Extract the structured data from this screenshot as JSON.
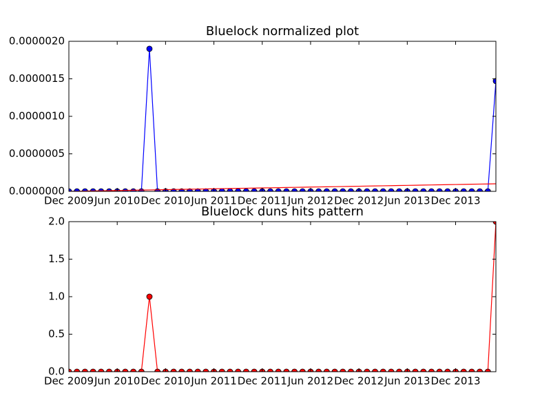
{
  "chart_data": [
    {
      "type": "line",
      "title": "Bluelock normalized plot",
      "x": [
        "2009-12",
        "2010-01",
        "2010-02",
        "2010-03",
        "2010-04",
        "2010-05",
        "2010-06",
        "2010-07",
        "2010-08",
        "2010-09",
        "2010-10",
        "2010-11",
        "2010-12",
        "2011-01",
        "2011-02",
        "2011-03",
        "2011-04",
        "2011-05",
        "2011-06",
        "2011-07",
        "2011-08",
        "2011-09",
        "2011-10",
        "2011-11",
        "2011-12",
        "2012-01",
        "2012-02",
        "2012-03",
        "2012-04",
        "2012-05",
        "2012-06",
        "2012-07",
        "2012-08",
        "2012-09",
        "2012-10",
        "2012-11",
        "2012-12",
        "2013-01",
        "2013-02",
        "2013-03",
        "2013-04",
        "2013-05",
        "2013-06",
        "2013-07",
        "2013-08",
        "2013-09",
        "2013-10",
        "2013-11",
        "2013-12",
        "2014-01",
        "2014-02",
        "2014-03",
        "2014-04",
        "2014-05"
      ],
      "series": [
        {
          "color": "#0000ff",
          "markers": true,
          "values": [
            0,
            0,
            0,
            0,
            0,
            0,
            0,
            0,
            0,
            0,
            1.9e-06,
            0,
            0,
            0,
            0,
            0,
            0,
            0,
            0,
            0,
            0,
            0,
            0,
            0,
            0,
            0,
            0,
            0,
            0,
            0,
            0,
            0,
            0,
            0,
            0,
            0,
            0,
            0,
            0,
            0,
            0,
            0,
            0,
            0,
            0,
            0,
            0,
            0,
            0,
            0,
            0,
            0,
            0,
            1.47e-06
          ]
        },
        {
          "color": "#ff0000",
          "markers": false,
          "values": [
            0,
            1.9e-09,
            3.8e-09,
            5.7e-09,
            7.6e-09,
            9.5e-09,
            1.14e-08,
            1.33e-08,
            1.52e-08,
            1.71e-08,
            1.9e-08,
            2.09e-08,
            2.28e-08,
            2.47e-08,
            2.66e-08,
            2.85e-08,
            3.04e-08,
            3.23e-08,
            3.42e-08,
            3.61e-08,
            3.8e-08,
            3.99e-08,
            4.18e-08,
            4.37e-08,
            4.56e-08,
            4.75e-08,
            4.94e-08,
            5.13e-08,
            5.32e-08,
            5.51e-08,
            5.7e-08,
            5.89e-08,
            6.08e-08,
            6.27e-08,
            6.46e-08,
            6.65e-08,
            6.84e-08,
            7.03e-08,
            7.22e-08,
            7.41e-08,
            7.6e-08,
            7.79e-08,
            7.98e-08,
            8.17e-08,
            8.36e-08,
            8.55e-08,
            8.74e-08,
            8.93e-08,
            9.12e-08,
            9.31e-08,
            9.5e-08,
            9.69e-08,
            9.88e-08,
            1.007e-07
          ]
        }
      ],
      "xlim": [
        "2009-12",
        "2014-05"
      ],
      "xticks": [
        {
          "value": "2009-12",
          "label": "Dec 2009"
        },
        {
          "value": "2010-06",
          "label": "Jun 2010"
        },
        {
          "value": "2010-12",
          "label": "Dec 2010"
        },
        {
          "value": "2011-06",
          "label": "Jun 2011"
        },
        {
          "value": "2011-12",
          "label": "Dec 2011"
        },
        {
          "value": "2012-06",
          "label": "Jun 2012"
        },
        {
          "value": "2012-12",
          "label": "Dec 2012"
        },
        {
          "value": "2013-06",
          "label": "Jun 2013"
        },
        {
          "value": "2013-12",
          "label": "Dec 2013"
        }
      ],
      "ylim": [
        0,
        2e-06
      ],
      "yticks": [
        {
          "value": 0,
          "label": "0.0000000"
        },
        {
          "value": 5e-07,
          "label": "0.0000005"
        },
        {
          "value": 1e-06,
          "label": "0.0000010"
        },
        {
          "value": 1.5e-06,
          "label": "0.0000015"
        },
        {
          "value": 2e-06,
          "label": "0.0000020"
        }
      ]
    },
    {
      "type": "line",
      "title": "Bluelock duns hits pattern",
      "x": [
        "2009-12",
        "2010-01",
        "2010-02",
        "2010-03",
        "2010-04",
        "2010-05",
        "2010-06",
        "2010-07",
        "2010-08",
        "2010-09",
        "2010-10",
        "2010-11",
        "2010-12",
        "2011-01",
        "2011-02",
        "2011-03",
        "2011-04",
        "2011-05",
        "2011-06",
        "2011-07",
        "2011-08",
        "2011-09",
        "2011-10",
        "2011-11",
        "2011-12",
        "2012-01",
        "2012-02",
        "2012-03",
        "2012-04",
        "2012-05",
        "2012-06",
        "2012-07",
        "2012-08",
        "2012-09",
        "2012-10",
        "2012-11",
        "2012-12",
        "2013-01",
        "2013-02",
        "2013-03",
        "2013-04",
        "2013-05",
        "2013-06",
        "2013-07",
        "2013-08",
        "2013-09",
        "2013-10",
        "2013-11",
        "2013-12",
        "2014-01",
        "2014-02",
        "2014-03",
        "2014-04",
        "2014-05"
      ],
      "series": [
        {
          "color": "#ff0000",
          "markers": true,
          "values": [
            0,
            0,
            0,
            0,
            0,
            0,
            0,
            0,
            0,
            0,
            1,
            0,
            0,
            0,
            0,
            0,
            0,
            0,
            0,
            0,
            0,
            0,
            0,
            0,
            0,
            0,
            0,
            0,
            0,
            0,
            0,
            0,
            0,
            0,
            0,
            0,
            0,
            0,
            0,
            0,
            0,
            0,
            0,
            0,
            0,
            0,
            0,
            0,
            0,
            0,
            0,
            0,
            0,
            2
          ]
        }
      ],
      "xlim": [
        "2009-12",
        "2014-05"
      ],
      "xticks": [
        {
          "value": "2009-12",
          "label": "Dec 2009"
        },
        {
          "value": "2010-06",
          "label": "Jun 2010"
        },
        {
          "value": "2010-12",
          "label": "Dec 2010"
        },
        {
          "value": "2011-06",
          "label": "Jun 2011"
        },
        {
          "value": "2011-12",
          "label": "Dec 2011"
        },
        {
          "value": "2012-06",
          "label": "Jun 2012"
        },
        {
          "value": "2012-12",
          "label": "Dec 2012"
        },
        {
          "value": "2013-06",
          "label": "Jun 2013"
        },
        {
          "value": "2013-12",
          "label": "Dec 2013"
        }
      ],
      "ylim": [
        0,
        2
      ],
      "yticks": [
        {
          "value": 0,
          "label": "0.0"
        },
        0.5,
        {
          "value": 1,
          "label": "1.0"
        },
        1.5,
        {
          "value": 2,
          "label": "2.0"
        }
      ]
    }
  ]
}
